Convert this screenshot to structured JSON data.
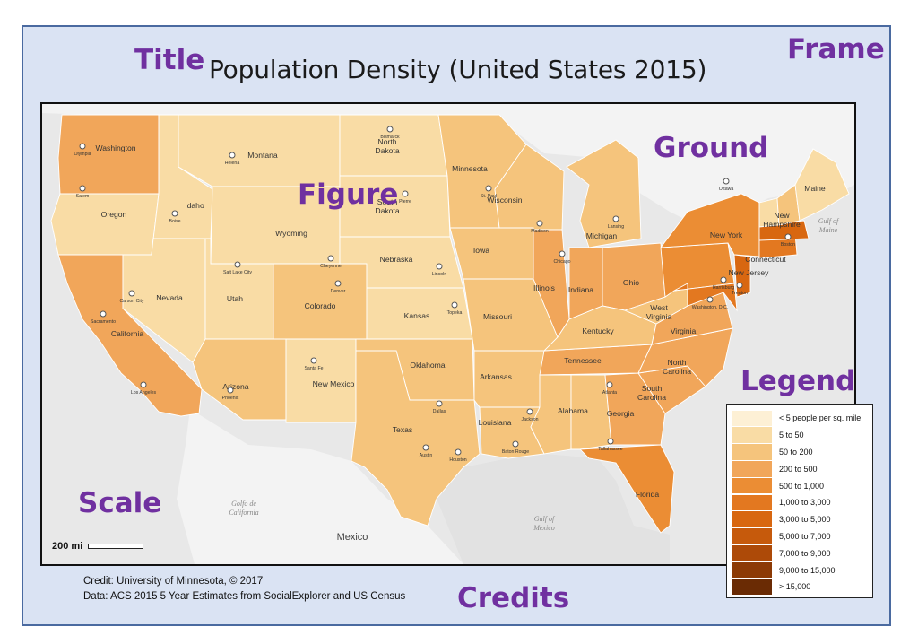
{
  "title": "Population Density (United States 2015)",
  "annotations": {
    "title_tag": "Title",
    "frame_tag": "Frame",
    "ground_tag": "Ground",
    "figure_tag": "Figure",
    "legend_tag": "Legend",
    "scale_tag": "Scale",
    "credits_tag": "Credits"
  },
  "scale": {
    "label": "200 mi"
  },
  "credits": {
    "line1": "Credit: University of Minnesota, © 2017",
    "line2": "Data: ACS 2015 5 Year Estimates from SocialExplorer and US Census"
  },
  "legend": {
    "items": [
      {
        "label": "< 5 people per sq. mile",
        "color": "#fdf0d5"
      },
      {
        "label": "5 to 50",
        "color": "#f9dca5"
      },
      {
        "label": "50 to 200",
        "color": "#f5c47c"
      },
      {
        "label": "200 to 500",
        "color": "#f1a65a"
      },
      {
        "label": "500 to 1,000",
        "color": "#eb8d34"
      },
      {
        "label": "1,000 to 3,000",
        "color": "#e37820"
      },
      {
        "label": "3,000 to 5,000",
        "color": "#d86710"
      },
      {
        "label": "5,000 to 7,000",
        "color": "#c65a0c"
      },
      {
        "label": "7,000 to 9,000",
        "color": "#ad4a08"
      },
      {
        "label": "9,000 to 15,000",
        "color": "#8c3a05"
      },
      {
        "label": "> 15,000",
        "color": "#6a2b04"
      }
    ]
  },
  "map": {
    "state_labels": [
      "Washington",
      "Montana",
      "North",
      "Dakota",
      "Minnesota",
      "Oregon",
      "Idaho",
      "South",
      "Dakota",
      "Wisconsin",
      "Wyoming",
      "Iowa",
      "Michigan",
      "Nebraska",
      "Nevada",
      "Utah",
      "Colorado",
      "Kansas",
      "Illinois",
      "Indiana",
      "Ohio",
      "Missouri",
      "California",
      "Kentucky",
      "West",
      "Virginia",
      "Virginia",
      "Arizona",
      "New Mexico",
      "Oklahoma",
      "Arkansas",
      "Tennessee",
      "North",
      "Carolina",
      "South",
      "Carolina",
      "Texas",
      "Louisiana",
      "Alabama",
      "Georgia",
      "Florida",
      "Maine",
      "New",
      "Hampshire",
      "New York",
      "Connecticut",
      "New Jersey"
    ],
    "city_labels": [
      "Olympia",
      "Salem",
      "Helena",
      "Bismarck",
      "Boise",
      "St. Paul",
      "Madison",
      "Lansing",
      "Pierre",
      "Ottawa",
      "Boston",
      "Chicago",
      "Salt Lake City",
      "Cheyenne",
      "Denver",
      "Lincoln",
      "Carson City",
      "Sacramento",
      "Topeka",
      "Harrisburg",
      "Trenton",
      "Washington, D.C.",
      "Los Angeles",
      "Phoenix",
      "Santa Fe",
      "Atlanta",
      "Dallas",
      "Jackson",
      "Austin",
      "Houston",
      "Baton Rouge",
      "Tallahassee"
    ],
    "water_labels": [
      "Gulf of",
      "Maine",
      "Golfo de",
      "California",
      "Gulf of",
      "Mexico"
    ],
    "country_labels": [
      "Mexico"
    ]
  }
}
